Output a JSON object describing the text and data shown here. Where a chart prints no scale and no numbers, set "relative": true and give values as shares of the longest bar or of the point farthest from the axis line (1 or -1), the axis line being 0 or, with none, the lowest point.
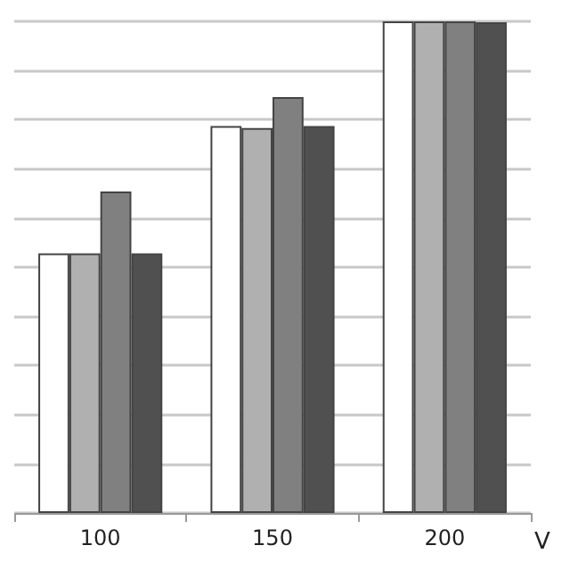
{
  "chart_data": {
    "type": "bar",
    "relative": true,
    "xlabel": "V",
    "categories": [
      "100",
      "150",
      "200"
    ],
    "grid": "y",
    "series": [
      {
        "color": "#ffffff",
        "values": [
          0.528,
          0.787,
          1
        ]
      },
      {
        "color": "#b0b0b0",
        "values": [
          0.528,
          0.783,
          1
        ]
      },
      {
        "color": "#808080",
        "values": [
          0.654,
          0.846,
          1
        ]
      },
      {
        "color": "#505050",
        "values": [
          0.528,
          0.787,
          0.998
        ]
      }
    ]
  }
}
